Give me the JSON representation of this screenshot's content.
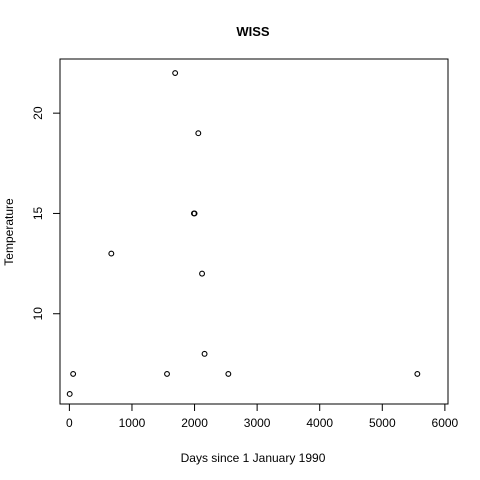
{
  "chart_data": {
    "type": "scatter",
    "title": "WISS",
    "xlabel": "Days since 1 January 1990",
    "ylabel": "Temperature",
    "xlim": [
      -150,
      6050
    ],
    "ylim": [
      5.5,
      22.7
    ],
    "xticks": [
      0,
      1000,
      2000,
      3000,
      4000,
      5000,
      6000
    ],
    "yticks": [
      10,
      15,
      20
    ],
    "grid": false,
    "points": [
      {
        "x": 5,
        "y": 6
      },
      {
        "x": 60,
        "y": 7
      },
      {
        "x": 670,
        "y": 13
      },
      {
        "x": 1560,
        "y": 7
      },
      {
        "x": 1690,
        "y": 22
      },
      {
        "x": 1990,
        "y": 15
      },
      {
        "x": 2000,
        "y": 15
      },
      {
        "x": 2060,
        "y": 19
      },
      {
        "x": 2120,
        "y": 12
      },
      {
        "x": 2160,
        "y": 8
      },
      {
        "x": 2540,
        "y": 7
      },
      {
        "x": 5560,
        "y": 7
      }
    ]
  }
}
